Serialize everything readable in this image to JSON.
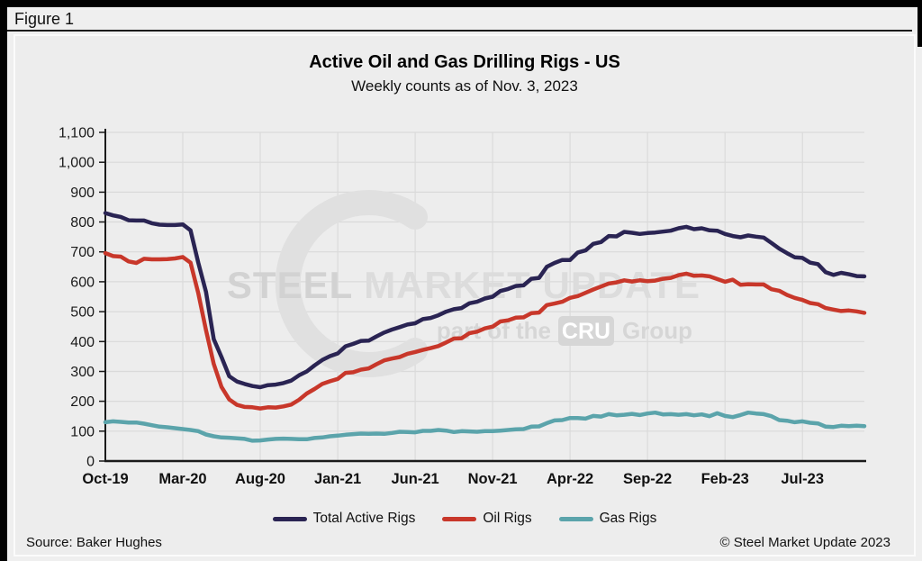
{
  "figure": {
    "label": "Figure 1"
  },
  "chart": {
    "title": "Active Oil and Gas Drilling Rigs - US",
    "subtitle": "Weekly counts as of Nov. 3, 2023",
    "source": "Source: Baker Hughes",
    "copyright": "© Steel Market Update 2023"
  },
  "watermark": {
    "brand_bold": "STEEL",
    "brand_rest": "MARKET UPDATE",
    "tagline_prefix": "part of the",
    "tagline_badge": "CRU",
    "tagline_suffix": "Group",
    "crescent_icon": "crescent-c-logo"
  },
  "colors": {
    "total_active_rigs": "#2a2453",
    "oil_rigs": "#c8372a",
    "gas_rigs": "#5ba4ab",
    "background": "#ededed",
    "gridline": "#dadada",
    "axis": "#1a1a1a",
    "watermark": "#d6d6d6"
  },
  "chart_data": {
    "type": "line",
    "title": "Active Oil and Gas Drilling Rigs - US",
    "subtitle": "Weekly counts as of Nov. 3, 2023",
    "xlabel": "",
    "ylabel": "",
    "grid": true,
    "legend_position": "bottom",
    "x_unit": "months since Oct-2019 (weekly counts sampled at half-month steps)",
    "x_step": 0.5,
    "x_max": 49,
    "ylim": [
      0,
      1100
    ],
    "x_ticks": [
      {
        "x": 0,
        "label": "Oct-19"
      },
      {
        "x": 5,
        "label": "Mar-20"
      },
      {
        "x": 10,
        "label": "Aug-20"
      },
      {
        "x": 15,
        "label": "Jan-21"
      },
      {
        "x": 20,
        "label": "Jun-21"
      },
      {
        "x": 25,
        "label": "Nov-21"
      },
      {
        "x": 30,
        "label": "Apr-22"
      },
      {
        "x": 35,
        "label": "Sep-22"
      },
      {
        "x": 40,
        "label": "Feb-23"
      },
      {
        "x": 45,
        "label": "Jul-23"
      }
    ],
    "y_ticks": [
      {
        "v": 0,
        "label": "0"
      },
      {
        "v": 100,
        "label": "100"
      },
      {
        "v": 200,
        "label": "200"
      },
      {
        "v": 300,
        "label": "300"
      },
      {
        "v": 400,
        "label": "400"
      },
      {
        "v": 500,
        "label": "500"
      },
      {
        "v": 600,
        "label": "600"
      },
      {
        "v": 700,
        "label": "700"
      },
      {
        "v": 800,
        "label": "800"
      },
      {
        "v": 900,
        "label": "900"
      },
      {
        "v": 1000,
        "label": "1,000"
      },
      {
        "v": 1100,
        "label": "1,100"
      }
    ],
    "series": [
      {
        "name": "Total Active Rigs",
        "color": "#2a2453",
        "values": [
          830,
          822,
          817,
          806,
          805,
          805,
          796,
          791,
          790,
          790,
          792,
          772,
          664,
          566,
          408,
          348,
          284,
          266,
          258,
          251,
          247,
          254,
          256,
          261,
          269,
          287,
          300,
          320,
          338,
          351,
          360,
          384,
          392,
          402,
          403,
          417,
          430,
          440,
          448,
          457,
          461,
          475,
          479,
          488,
          500,
          508,
          512,
          528,
          533,
          544,
          550,
          569,
          576,
          586,
          588,
          610,
          613,
          650,
          663,
          673,
          673,
          698,
          705,
          727,
          733,
          753,
          752,
          767,
          764,
          760,
          763,
          765,
          768,
          771,
          779,
          784,
          776,
          779,
          772,
          771,
          760,
          753,
          749,
          755,
          751,
          748,
          730,
          711,
          696,
          682,
          680,
          664,
          659,
          632,
          623,
          630,
          625,
          619,
          618
        ]
      },
      {
        "name": "Oil Rigs",
        "color": "#c8372a",
        "values": [
          696,
          686,
          684,
          668,
          663,
          677,
          675,
          675,
          676,
          678,
          683,
          664,
          562,
          438,
          325,
          248,
          206,
          188,
          181,
          180,
          176,
          180,
          179,
          183,
          189,
          205,
          226,
          241,
          258,
          267,
          275,
          295,
          297,
          306,
          310,
          324,
          337,
          343,
          348,
          359,
          365,
          372,
          378,
          385,
          397,
          410,
          411,
          428,
          433,
          444,
          450,
          467,
          471,
          480,
          481,
          495,
          497,
          522,
          527,
          533,
          546,
          552,
          563,
          574,
          584,
          594,
          598,
          605,
          601,
          605,
          602,
          604,
          610,
          613,
          622,
          627,
          620,
          621,
          618,
          609,
          600,
          607,
          590,
          592,
          591,
          591,
          575,
          570,
          556,
          546,
          539,
          529,
          525,
          512,
          507,
          502,
          504,
          501,
          496
        ]
      },
      {
        "name": "Gas Rigs",
        "color": "#5ba4ab",
        "values": [
          130,
          133,
          131,
          129,
          129,
          125,
          120,
          115,
          113,
          110,
          107,
          104,
          100,
          89,
          83,
          79,
          78,
          76,
          74,
          68,
          69,
          72,
          74,
          75,
          74,
          73,
          73,
          77,
          79,
          83,
          85,
          88,
          90,
          92,
          91,
          92,
          91,
          94,
          98,
          97,
          96,
          101,
          101,
          104,
          102,
          97,
          100,
          99,
          98,
          100,
          100,
          102,
          104,
          106,
          107,
          115,
          116,
          127,
          136,
          137,
          144,
          144,
          142,
          151,
          149,
          157,
          153,
          155,
          158,
          154,
          159,
          162,
          156,
          157,
          155,
          157,
          153,
          156,
          150,
          160,
          151,
          147,
          154,
          162,
          159,
          157,
          150,
          137,
          135,
          130,
          133,
          128,
          126,
          115,
          114,
          118,
          117,
          118,
          117
        ]
      }
    ]
  }
}
